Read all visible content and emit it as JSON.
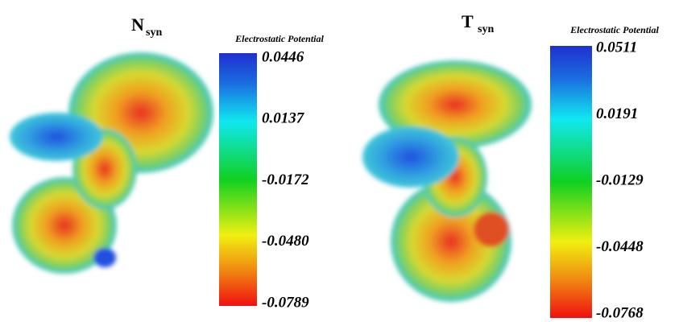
{
  "panels": [
    {
      "title": "N",
      "subscript": "syn",
      "colorbar": {
        "label": "Electrostatic Potential",
        "ticks": [
          "0.0446",
          "0.0137",
          "-0.0172",
          "-0.0480",
          "-0.0789"
        ]
      }
    },
    {
      "title": "T",
      "subscript": "syn",
      "colorbar": {
        "label": "Electrostatic Potential",
        "ticks": [
          "0.0511",
          "0.0191",
          "-0.0129",
          "-0.0448",
          "-0.0768"
        ]
      }
    }
  ]
}
